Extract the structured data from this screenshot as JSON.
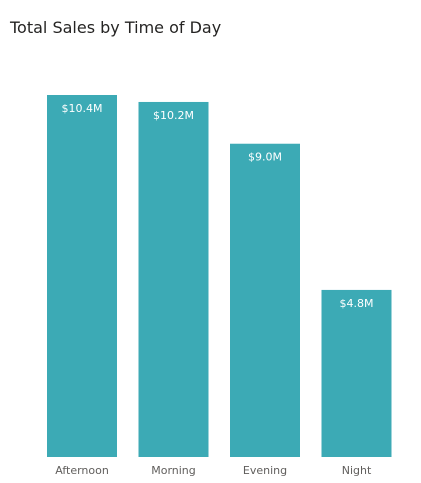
{
  "chart_data": {
    "type": "bar",
    "title": "Total Sales by Time of Day",
    "categories": [
      "Afternoon",
      "Morning",
      "Evening",
      "Night"
    ],
    "values": [
      10.4,
      10.2,
      9.0,
      4.8
    ],
    "data_labels": [
      "$10.4M",
      "$10.2M",
      "$9.0M",
      "$4.8M"
    ],
    "unit": "$M",
    "ylim": [
      0,
      10.4
    ],
    "xlabel": "",
    "ylabel": "",
    "grid": false,
    "legend": "none",
    "bar_color": "#3CAAB5"
  }
}
